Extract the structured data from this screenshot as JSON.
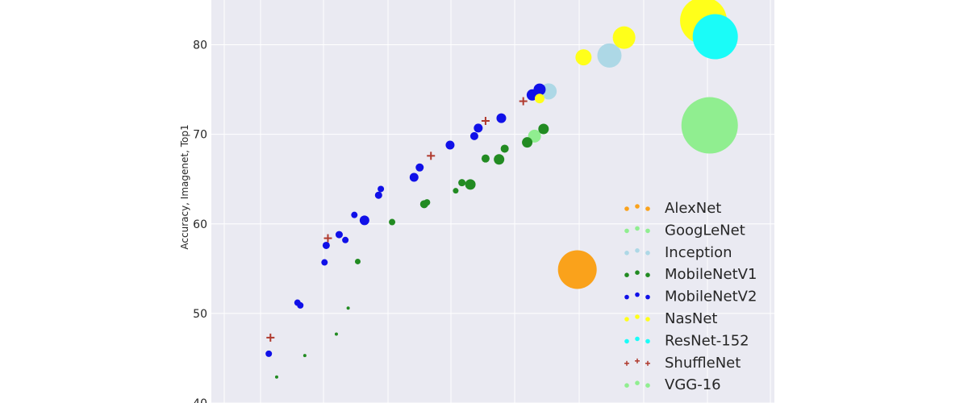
{
  "chart_data": {
    "type": "scatter",
    "title": "",
    "xlabel": "",
    "ylabel": "Accuracy, Imagenet, Top1",
    "ylim": [
      40,
      85
    ],
    "yticks": [
      40,
      50,
      60,
      70,
      80
    ],
    "xlim": [
      0,
      1
    ],
    "grid": true,
    "legend_position": "lower-right",
    "background": "#eaeaf2",
    "series": [
      {
        "name": "AlexNet",
        "color": "#faa21b",
        "marker": "circle",
        "points": [
          {
            "x": 0.65,
            "y": 54.9,
            "size": 24
          }
        ]
      },
      {
        "name": "GoogLeNet",
        "color": "#90ee90",
        "marker": "circle",
        "points": [
          {
            "x": 0.574,
            "y": 69.8,
            "size": 8
          }
        ]
      },
      {
        "name": "Inception",
        "color": "#add8e6",
        "marker": "circle",
        "points": [
          {
            "x": 0.599,
            "y": 74.8,
            "size": 10
          },
          {
            "x": 0.707,
            "y": 78.8,
            "size": 15
          }
        ]
      },
      {
        "name": "MobileNetV1",
        "color": "#228b22",
        "marker": "circle",
        "points": [
          {
            "x": 0.116,
            "y": 42.9,
            "size": 2
          },
          {
            "x": 0.166,
            "y": 45.3,
            "size": 2
          },
          {
            "x": 0.222,
            "y": 47.7,
            "size": 2
          },
          {
            "x": 0.243,
            "y": 50.6,
            "size": 2
          },
          {
            "x": 0.26,
            "y": 55.8,
            "size": 3.5
          },
          {
            "x": 0.321,
            "y": 60.2,
            "size": 4
          },
          {
            "x": 0.378,
            "y": 62.2,
            "size": 5
          },
          {
            "x": 0.383,
            "y": 62.4,
            "size": 4
          },
          {
            "x": 0.434,
            "y": 63.7,
            "size": 3.5
          },
          {
            "x": 0.445,
            "y": 64.6,
            "size": 4.5
          },
          {
            "x": 0.46,
            "y": 64.4,
            "size": 6.5
          },
          {
            "x": 0.487,
            "y": 67.3,
            "size": 5
          },
          {
            "x": 0.511,
            "y": 67.2,
            "size": 6.5
          },
          {
            "x": 0.521,
            "y": 68.4,
            "size": 5
          },
          {
            "x": 0.561,
            "y": 69.1,
            "size": 6.5
          },
          {
            "x": 0.59,
            "y": 70.6,
            "size": 6.5
          }
        ]
      },
      {
        "name": "MobileNetV2",
        "color": "#1010e8",
        "marker": "circle",
        "points": [
          {
            "x": 0.102,
            "y": 45.5,
            "size": 4
          },
          {
            "x": 0.153,
            "y": 51.2,
            "size": 4
          },
          {
            "x": 0.158,
            "y": 50.9,
            "size": 4
          },
          {
            "x": 0.201,
            "y": 55.7,
            "size": 4
          },
          {
            "x": 0.204,
            "y": 57.6,
            "size": 4.5
          },
          {
            "x": 0.227,
            "y": 58.8,
            "size": 4.5
          },
          {
            "x": 0.238,
            "y": 58.2,
            "size": 4
          },
          {
            "x": 0.254,
            "y": 61.0,
            "size": 4
          },
          {
            "x": 0.272,
            "y": 60.4,
            "size": 6
          },
          {
            "x": 0.297,
            "y": 63.2,
            "size": 4.5
          },
          {
            "x": 0.301,
            "y": 63.9,
            "size": 4
          },
          {
            "x": 0.36,
            "y": 65.2,
            "size": 5.5
          },
          {
            "x": 0.37,
            "y": 66.3,
            "size": 5
          },
          {
            "x": 0.424,
            "y": 68.8,
            "size": 5.5
          },
          {
            "x": 0.467,
            "y": 69.8,
            "size": 5
          },
          {
            "x": 0.474,
            "y": 70.7,
            "size": 5.5
          },
          {
            "x": 0.515,
            "y": 71.8,
            "size": 6
          },
          {
            "x": 0.57,
            "y": 74.4,
            "size": 7
          },
          {
            "x": 0.583,
            "y": 75.0,
            "size": 7.5
          }
        ]
      },
      {
        "name": "NasNet",
        "color": "#ffff1a",
        "marker": "circle",
        "points": [
          {
            "x": 0.583,
            "y": 74.0,
            "size": 6
          },
          {
            "x": 0.661,
            "y": 78.6,
            "size": 10
          },
          {
            "x": 0.733,
            "y": 80.8,
            "size": 14
          },
          {
            "x": 0.874,
            "y": 82.7,
            "size": 29
          }
        ]
      },
      {
        "name": "ResNet-152",
        "color": "#1afcf8",
        "marker": "circle",
        "points": [
          {
            "x": 0.895,
            "y": 80.9,
            "size": 28
          }
        ]
      },
      {
        "name": "ShuffleNet",
        "color": "#b03a2e",
        "marker": "plus",
        "points": [
          {
            "x": 0.105,
            "y": 47.3,
            "size": 5
          },
          {
            "x": 0.207,
            "y": 58.4,
            "size": 5
          },
          {
            "x": 0.39,
            "y": 67.6,
            "size": 5
          },
          {
            "x": 0.487,
            "y": 71.5,
            "size": 5
          },
          {
            "x": 0.554,
            "y": 73.7,
            "size": 5
          }
        ]
      },
      {
        "name": "VGG-16",
        "color": "#90ee90",
        "marker": "circle",
        "points": [
          {
            "x": 0.885,
            "y": 71.0,
            "size": 35
          }
        ]
      }
    ]
  }
}
